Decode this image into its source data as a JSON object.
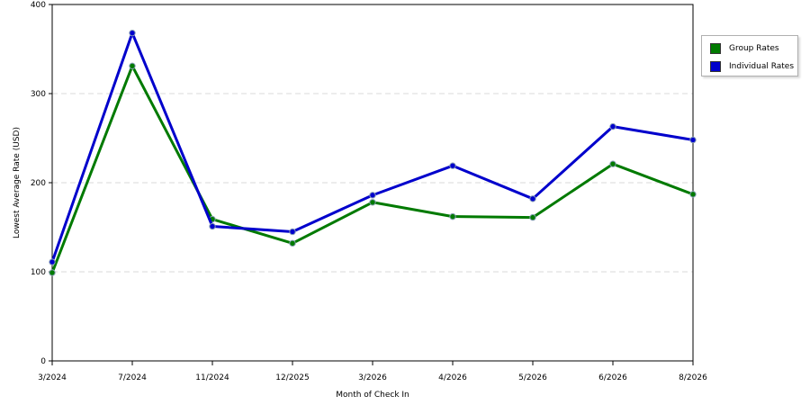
{
  "chart_data": {
    "type": "line",
    "title": "",
    "xlabel": "Month of Check In",
    "ylabel": "Lowest Average Rate (USD)",
    "ylim": [
      0,
      400
    ],
    "yticks": [
      0,
      100,
      200,
      300,
      400
    ],
    "grid": true,
    "legend_placement": "right",
    "categories": [
      "3/2024",
      "7/2024",
      "11/2024",
      "12/2025",
      "3/2026",
      "4/2026",
      "5/2026",
      "6/2026",
      "8/2026"
    ],
    "series": [
      {
        "name": "Group Rates",
        "color": "#007a00",
        "values": [
          99,
          331,
          159,
          132,
          178,
          162,
          161,
          221,
          187
        ]
      },
      {
        "name": "Individual Rates",
        "color": "#0000cc",
        "values": [
          111,
          368,
          151,
          145,
          186,
          219,
          182,
          263,
          248
        ]
      }
    ]
  }
}
